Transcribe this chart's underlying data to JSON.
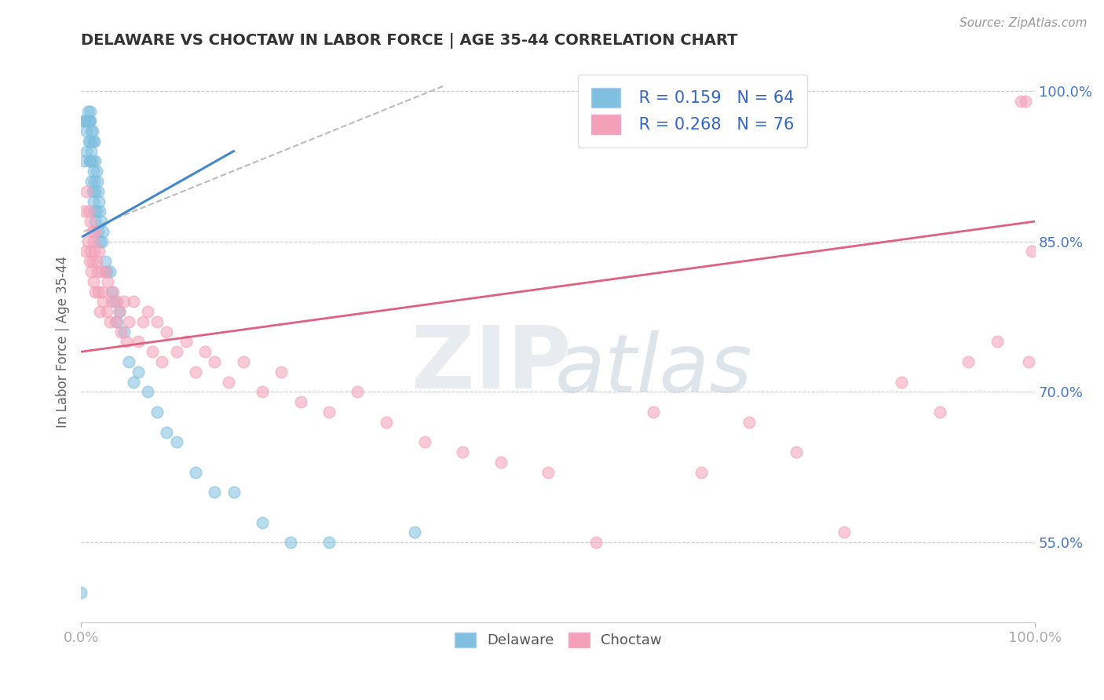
{
  "title": "DELAWARE VS CHOCTAW IN LABOR FORCE | AGE 35-44 CORRELATION CHART",
  "source_text": "Source: ZipAtlas.com",
  "ylabel": "In Labor Force | Age 35-44",
  "xlim": [
    0.0,
    1.0
  ],
  "ylim": [
    0.47,
    1.03
  ],
  "yticks_right": [
    0.55,
    0.7,
    0.85,
    1.0
  ],
  "ytick_labels_right": [
    "55.0%",
    "70.0%",
    "85.0%",
    "100.0%"
  ],
  "legend_r1": "R = 0.159",
  "legend_n1": "N = 64",
  "legend_r2": "R = 0.268",
  "legend_n2": "N = 76",
  "legend_label1": "Delaware",
  "legend_label2": "Choctaw",
  "blue_color": "#7fbfdf",
  "pink_color": "#f4a0b8",
  "blue_line_color": "#4488cc",
  "pink_line_color": "#e06080",
  "legend_text_color": "#3366cc",
  "background_color": "#ffffff",
  "grid_color": "#cccccc",
  "blue_scatter_x": [
    0.0,
    0.002,
    0.003,
    0.004,
    0.005,
    0.006,
    0.006,
    0.007,
    0.008,
    0.008,
    0.009,
    0.009,
    0.01,
    0.01,
    0.01,
    0.01,
    0.011,
    0.011,
    0.011,
    0.012,
    0.012,
    0.012,
    0.013,
    0.013,
    0.013,
    0.014,
    0.014,
    0.014,
    0.015,
    0.015,
    0.015,
    0.016,
    0.016,
    0.017,
    0.018,
    0.018,
    0.019,
    0.02,
    0.02,
    0.021,
    0.022,
    0.023,
    0.025,
    0.027,
    0.03,
    0.032,
    0.035,
    0.038,
    0.04,
    0.045,
    0.05,
    0.055,
    0.06,
    0.07,
    0.08,
    0.09,
    0.1,
    0.12,
    0.14,
    0.16,
    0.19,
    0.22,
    0.26,
    0.35
  ],
  "blue_scatter_y": [
    0.5,
    0.97,
    0.93,
    0.97,
    0.97,
    0.96,
    0.94,
    0.98,
    0.97,
    0.95,
    0.97,
    0.93,
    0.98,
    0.97,
    0.95,
    0.93,
    0.96,
    0.94,
    0.91,
    0.96,
    0.93,
    0.9,
    0.95,
    0.92,
    0.89,
    0.95,
    0.91,
    0.88,
    0.93,
    0.9,
    0.87,
    0.92,
    0.88,
    0.91,
    0.9,
    0.86,
    0.89,
    0.88,
    0.85,
    0.87,
    0.85,
    0.86,
    0.83,
    0.82,
    0.82,
    0.8,
    0.79,
    0.77,
    0.78,
    0.76,
    0.73,
    0.71,
    0.72,
    0.7,
    0.68,
    0.66,
    0.65,
    0.62,
    0.6,
    0.6,
    0.57,
    0.55,
    0.55,
    0.56
  ],
  "pink_scatter_x": [
    0.003,
    0.005,
    0.006,
    0.007,
    0.008,
    0.009,
    0.01,
    0.01,
    0.011,
    0.012,
    0.012,
    0.013,
    0.013,
    0.014,
    0.015,
    0.015,
    0.016,
    0.017,
    0.018,
    0.019,
    0.02,
    0.021,
    0.022,
    0.023,
    0.025,
    0.027,
    0.028,
    0.03,
    0.032,
    0.034,
    0.036,
    0.038,
    0.04,
    0.042,
    0.045,
    0.048,
    0.05,
    0.055,
    0.06,
    0.065,
    0.07,
    0.075,
    0.08,
    0.085,
    0.09,
    0.1,
    0.11,
    0.12,
    0.13,
    0.14,
    0.155,
    0.17,
    0.19,
    0.21,
    0.23,
    0.26,
    0.29,
    0.32,
    0.36,
    0.4,
    0.44,
    0.49,
    0.54,
    0.6,
    0.65,
    0.7,
    0.75,
    0.8,
    0.86,
    0.9,
    0.93,
    0.96,
    0.985,
    0.99,
    0.993,
    0.997
  ],
  "pink_scatter_y": [
    0.88,
    0.84,
    0.9,
    0.85,
    0.88,
    0.83,
    0.87,
    0.84,
    0.82,
    0.86,
    0.83,
    0.85,
    0.81,
    0.84,
    0.86,
    0.8,
    0.83,
    0.82,
    0.8,
    0.84,
    0.78,
    0.82,
    0.8,
    0.79,
    0.82,
    0.78,
    0.81,
    0.77,
    0.79,
    0.8,
    0.77,
    0.79,
    0.78,
    0.76,
    0.79,
    0.75,
    0.77,
    0.79,
    0.75,
    0.77,
    0.78,
    0.74,
    0.77,
    0.73,
    0.76,
    0.74,
    0.75,
    0.72,
    0.74,
    0.73,
    0.71,
    0.73,
    0.7,
    0.72,
    0.69,
    0.68,
    0.7,
    0.67,
    0.65,
    0.64,
    0.63,
    0.62,
    0.55,
    0.68,
    0.62,
    0.67,
    0.64,
    0.56,
    0.71,
    0.68,
    0.73,
    0.75,
    0.99,
    0.99,
    0.73,
    0.84
  ],
  "blue_line_x": [
    0.002,
    0.16
  ],
  "blue_line_y": [
    0.855,
    0.94
  ],
  "pink_line_x": [
    0.0,
    1.0
  ],
  "pink_line_y": [
    0.74,
    0.87
  ],
  "dashed_line_x": [
    0.003,
    0.38
  ],
  "dashed_line_y": [
    0.86,
    1.005
  ]
}
